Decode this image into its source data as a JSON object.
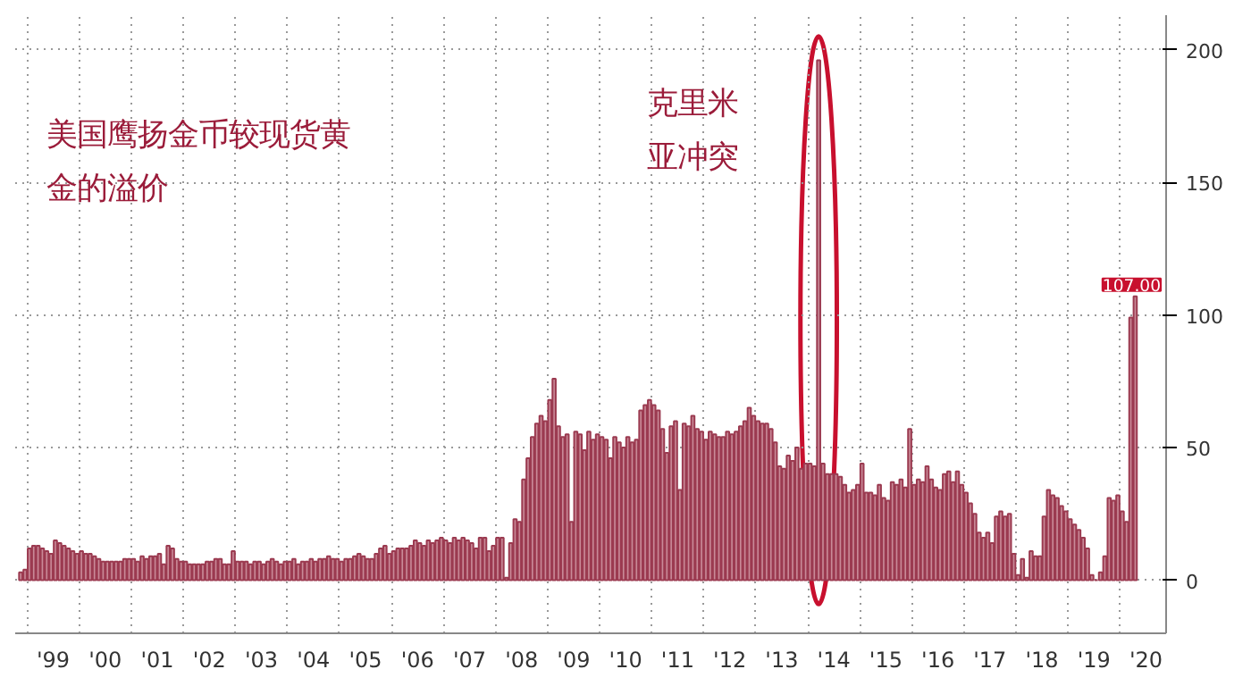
{
  "chart_data": {
    "type": "bar",
    "title": "美国鹰扬金币较现货黄金的溢价",
    "annotations": [
      {
        "text": "克里米亚冲突",
        "x": "2014-03",
        "y": 196
      }
    ],
    "x": [
      "1998-11",
      "1998-12",
      "1999-01",
      "1999-02",
      "1999-03",
      "1999-04",
      "1999-05",
      "1999-06",
      "1999-07",
      "1999-08",
      "1999-09",
      "1999-10",
      "1999-11",
      "1999-12",
      "2000-01",
      "2000-02",
      "2000-03",
      "2000-04",
      "2000-05",
      "2000-06",
      "2000-07",
      "2000-08",
      "2000-09",
      "2000-10",
      "2000-11",
      "2000-12",
      "2001-01",
      "2001-02",
      "2001-03",
      "2001-04",
      "2001-05",
      "2001-06",
      "2001-07",
      "2001-08",
      "2001-09",
      "2001-10",
      "2001-11",
      "2001-12",
      "2002-01",
      "2002-02",
      "2002-03",
      "2002-04",
      "2002-05",
      "2002-06",
      "2002-07",
      "2002-08",
      "2002-09",
      "2002-10",
      "2002-11",
      "2002-12",
      "2003-01",
      "2003-02",
      "2003-03",
      "2003-04",
      "2003-05",
      "2003-06",
      "2003-07",
      "2003-08",
      "2003-09",
      "2003-10",
      "2003-11",
      "2003-12",
      "2004-01",
      "2004-02",
      "2004-03",
      "2004-04",
      "2004-05",
      "2004-06",
      "2004-07",
      "2004-08",
      "2004-09",
      "2004-10",
      "2004-11",
      "2004-12",
      "2005-01",
      "2005-02",
      "2005-03",
      "2005-04",
      "2005-05",
      "2005-06",
      "2005-07",
      "2005-08",
      "2005-09",
      "2005-10",
      "2005-11",
      "2005-12",
      "2006-01",
      "2006-02",
      "2006-03",
      "2006-04",
      "2006-05",
      "2006-06",
      "2006-07",
      "2006-08",
      "2006-09",
      "2006-10",
      "2006-11",
      "2006-12",
      "2007-01",
      "2007-02",
      "2007-03",
      "2007-04",
      "2007-05",
      "2007-06",
      "2007-07",
      "2007-08",
      "2007-09",
      "2007-10",
      "2007-11",
      "2007-12",
      "2008-01",
      "2008-02",
      "2008-03",
      "2008-04",
      "2008-05",
      "2008-06",
      "2008-07",
      "2008-08",
      "2008-09",
      "2008-10",
      "2008-11",
      "2008-12",
      "2009-01",
      "2009-02",
      "2009-03",
      "2009-04",
      "2009-05",
      "2009-06",
      "2009-07",
      "2009-08",
      "2009-09",
      "2009-10",
      "2009-11",
      "2009-12",
      "2010-01",
      "2010-02",
      "2010-03",
      "2010-04",
      "2010-05",
      "2010-06",
      "2010-07",
      "2010-08",
      "2010-09",
      "2010-10",
      "2010-11",
      "2010-12",
      "2011-01",
      "2011-02",
      "2011-03",
      "2011-04",
      "2011-05",
      "2011-06",
      "2011-07",
      "2011-08",
      "2011-09",
      "2011-10",
      "2011-11",
      "2011-12",
      "2012-01",
      "2012-02",
      "2012-03",
      "2012-04",
      "2012-05",
      "2012-06",
      "2012-07",
      "2012-08",
      "2012-09",
      "2012-10",
      "2012-11",
      "2012-12",
      "2013-01",
      "2013-02",
      "2013-03",
      "2013-04",
      "2013-05",
      "2013-06",
      "2013-07",
      "2013-08",
      "2013-09",
      "2013-10",
      "2013-11",
      "2013-12",
      "2014-01",
      "2014-02",
      "2014-03",
      "2014-04",
      "2014-05",
      "2014-06",
      "2014-07",
      "2014-08",
      "2014-09",
      "2014-10",
      "2014-11",
      "2014-12",
      "2015-01",
      "2015-02",
      "2015-03",
      "2015-04",
      "2015-05",
      "2015-06",
      "2015-07",
      "2015-08",
      "2015-09",
      "2015-10",
      "2015-11",
      "2015-12",
      "2016-01",
      "2016-02",
      "2016-03",
      "2016-04",
      "2016-05",
      "2016-06",
      "2016-07",
      "2016-08",
      "2016-09",
      "2016-10",
      "2016-11",
      "2016-12",
      "2017-01",
      "2017-02",
      "2017-03",
      "2017-04",
      "2017-05",
      "2017-06",
      "2017-07",
      "2017-08",
      "2017-09",
      "2017-10",
      "2017-11",
      "2017-12",
      "2018-01",
      "2018-02",
      "2018-03",
      "2018-04",
      "2018-05",
      "2018-06",
      "2018-07",
      "2018-08",
      "2018-09",
      "2018-10",
      "2018-11",
      "2018-12",
      "2019-01",
      "2019-02",
      "2019-03",
      "2019-04",
      "2019-05",
      "2019-06",
      "2019-07",
      "2019-08",
      "2019-09",
      "2019-10",
      "2019-11",
      "2019-12",
      "2020-01",
      "2020-02",
      "2020-03",
      "2020-04"
    ],
    "values": [
      3,
      4,
      12,
      13,
      13,
      12,
      11,
      10,
      15,
      14,
      13,
      12,
      11,
      10,
      11,
      10,
      10,
      9,
      8,
      7,
      7,
      7,
      7,
      7,
      8,
      8,
      8,
      7,
      9,
      8,
      9,
      9,
      10,
      6,
      13,
      12,
      8,
      7,
      7,
      6,
      6,
      6,
      6,
      7,
      7,
      8,
      8,
      6,
      6,
      11,
      7,
      7,
      7,
      6,
      7,
      7,
      6,
      7,
      8,
      7,
      6,
      7,
      7,
      8,
      6,
      7,
      7,
      8,
      7,
      8,
      8,
      9,
      8,
      8,
      7,
      8,
      8,
      9,
      10,
      9,
      8,
      8,
      10,
      12,
      13,
      10,
      11,
      12,
      12,
      12,
      13,
      15,
      14,
      13,
      15,
      14,
      15,
      16,
      15,
      14,
      16,
      15,
      16,
      15,
      14,
      12,
      16,
      16,
      11,
      13,
      16,
      16,
      1,
      14,
      23,
      22,
      38,
      46,
      54,
      59,
      62,
      60,
      68,
      76,
      58,
      54,
      55,
      22,
      56,
      55,
      49,
      56,
      53,
      55,
      54,
      53,
      46,
      54,
      52,
      50,
      54,
      52,
      53,
      64,
      66,
      68,
      66,
      64,
      57,
      48,
      58,
      60,
      34,
      59,
      58,
      62,
      57,
      56,
      53,
      56,
      55,
      54,
      54,
      56,
      55,
      56,
      58,
      60,
      65,
      62,
      60,
      59,
      59,
      57,
      52,
      43,
      42,
      47,
      45,
      50,
      42,
      44,
      44,
      43,
      196,
      44,
      40,
      40,
      40,
      39,
      36,
      33,
      34,
      36,
      44,
      33,
      33,
      32,
      36,
      31,
      30,
      37,
      36,
      38,
      35,
      57,
      36,
      38,
      37,
      43,
      38,
      35,
      34,
      40,
      41,
      37,
      41,
      36,
      33,
      29,
      25,
      18,
      16,
      18,
      14,
      24,
      26,
      24,
      25,
      10,
      2,
      8,
      1,
      11,
      9,
      9,
      24,
      34,
      32,
      31,
      28,
      26,
      23,
      21,
      19,
      16,
      12,
      2,
      0,
      3,
      9,
      31,
      30,
      32,
      26,
      22,
      99,
      107
    ],
    "value_labels": [
      null,
      null,
      null,
      null,
      null,
      null,
      null,
      null,
      null,
      null,
      null,
      null,
      null,
      null,
      null,
      null,
      null,
      null,
      null,
      null,
      null,
      null,
      null,
      null,
      null,
      null,
      null,
      null,
      null,
      null,
      null,
      null,
      null,
      null,
      null,
      null,
      null,
      null,
      null,
      null,
      null,
      null,
      null,
      null,
      null,
      null,
      null,
      null,
      null,
      null,
      null,
      null,
      null,
      null,
      null,
      null,
      null,
      null,
      null,
      null,
      null,
      null,
      null,
      null,
      null,
      null,
      null,
      null,
      null,
      null,
      null,
      null,
      null,
      null,
      null,
      null,
      null,
      null,
      null,
      null,
      null,
      null,
      null,
      null,
      null,
      null,
      null,
      null,
      null,
      null,
      null,
      null,
      null,
      null,
      null,
      null,
      null,
      null,
      null,
      null,
      null,
      null,
      null,
      null,
      null,
      null,
      null,
      null,
      null,
      null,
      null,
      null,
      null,
      null,
      null,
      null,
      null,
      null,
      null,
      null,
      null,
      null,
      null,
      null,
      null,
      null,
      null,
      null,
      null,
      null,
      null,
      null,
      null,
      null,
      null,
      null,
      null,
      null,
      null,
      null,
      null,
      null,
      null,
      null,
      null,
      null,
      null,
      null,
      null,
      null,
      null,
      null,
      null,
      null,
      null,
      null,
      null,
      null,
      null,
      null,
      null,
      null,
      null,
      null,
      null,
      null,
      null,
      null,
      null,
      null,
      null,
      null,
      null,
      null,
      null,
      null,
      null,
      null,
      null,
      null,
      null,
      null,
      null,
      null,
      null,
      null,
      null,
      null,
      null,
      null,
      null,
      null,
      null,
      null,
      null,
      null,
      null,
      null,
      null,
      null,
      null,
      null,
      null,
      null,
      null,
      null,
      null,
      null,
      null,
      null,
      null,
      null,
      null,
      null,
      null,
      null,
      null,
      null,
      null,
      null,
      null,
      null,
      null,
      null,
      null,
      null,
      null,
      null,
      null,
      null,
      null,
      null,
      null,
      null,
      null,
      null,
      null,
      null,
      null,
      null,
      null,
      null,
      null,
      null,
      null,
      null,
      null,
      null,
      null,
      null,
      null,
      null,
      null,
      null,
      null,
      null,
      null,
      "107.00"
    ],
    "color": "#9b3a50",
    "xlim": [
      "1998-10-08",
      "2020-11-20"
    ],
    "xticks": [
      {
        "value": "1999-01-01",
        "label": null
      },
      {
        "value": "1999-07-01",
        "label": "'99"
      },
      {
        "value": "2000-01-01",
        "label": null
      },
      {
        "value": "2000-07-01",
        "label": "'00"
      },
      {
        "value": "2001-01-01",
        "label": null
      },
      {
        "value": "2001-07-01",
        "label": "'01"
      },
      {
        "value": "2002-01-01",
        "label": null
      },
      {
        "value": "2002-07-01",
        "label": "'02"
      },
      {
        "value": "2003-01-01",
        "label": null
      },
      {
        "value": "2003-07-01",
        "label": "'03"
      },
      {
        "value": "2004-01-01",
        "label": null
      },
      {
        "value": "2004-07-01",
        "label": "'04"
      },
      {
        "value": "2005-01-01",
        "label": null
      },
      {
        "value": "2005-07-01",
        "label": "'05"
      },
      {
        "value": "2006-01-01",
        "label": null
      },
      {
        "value": "2006-07-01",
        "label": "'06"
      },
      {
        "value": "2007-01-01",
        "label": null
      },
      {
        "value": "2007-07-01",
        "label": "'07"
      },
      {
        "value": "2008-01-01",
        "label": null
      },
      {
        "value": "2008-07-01",
        "label": "'08"
      },
      {
        "value": "2009-01-01",
        "label": null
      },
      {
        "value": "2009-07-01",
        "label": "'09"
      },
      {
        "value": "2010-01-01",
        "label": null
      },
      {
        "value": "2010-07-01",
        "label": "'10"
      },
      {
        "value": "2011-01-01",
        "label": null
      },
      {
        "value": "2011-07-01",
        "label": "'11"
      },
      {
        "value": "2012-01-01",
        "label": null
      },
      {
        "value": "2012-07-01",
        "label": "'12"
      },
      {
        "value": "2013-01-01",
        "label": null
      },
      {
        "value": "2013-07-01",
        "label": "'13"
      },
      {
        "value": "2014-01-01",
        "label": null
      },
      {
        "value": "2014-07-01",
        "label": "'14"
      },
      {
        "value": "2015-01-01",
        "label": null
      },
      {
        "value": "2015-07-01",
        "label": "'15"
      },
      {
        "value": "2016-01-01",
        "label": null
      },
      {
        "value": "2016-07-01",
        "label": "'16"
      },
      {
        "value": "2017-01-01",
        "label": null
      },
      {
        "value": "2017-07-01",
        "label": "'17"
      },
      {
        "value": "2018-01-01",
        "label": null
      },
      {
        "value": "2018-07-01",
        "label": "'18"
      },
      {
        "value": "2019-01-01",
        "label": null
      },
      {
        "value": "2019-07-01",
        "label": "'19"
      },
      {
        "value": "2020-01-01",
        "label": null
      },
      {
        "value": "2020-07-01",
        "label": "'20"
      }
    ],
    "ylim": [
      -20,
      213
    ],
    "yticks": [
      0,
      50,
      100,
      150,
      200
    ],
    "grid": true
  }
}
